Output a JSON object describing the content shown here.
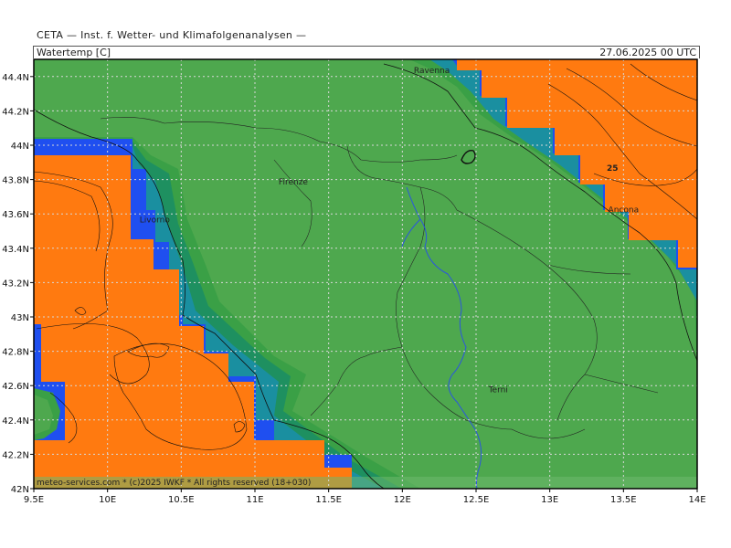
{
  "header": {
    "title": "CETA — Inst. f. Wetter- und Klimafolgenanalysen —",
    "parameter": "Watertemp [C]",
    "timestamp": "27.06.2025 00 UTC"
  },
  "map": {
    "lon_range": [
      9.5,
      14.0
    ],
    "lat_range": [
      42.0,
      44.5
    ],
    "x_ticks": [
      "9.5E",
      "10E",
      "10.5E",
      "11E",
      "11.5E",
      "12E",
      "12.5E",
      "13E",
      "13.5E",
      "14E"
    ],
    "y_ticks": [
      "44.4N",
      "44.2N",
      "44N",
      "43.8N",
      "43.6N",
      "43.4N",
      "43.2N",
      "43N",
      "42.8N",
      "42.6N",
      "42.4N",
      "42.2N",
      "42N"
    ],
    "cities": [
      {
        "name": "Ravenna",
        "lon": 12.2,
        "lat": 44.42
      },
      {
        "name": "Firenze",
        "lon": 11.26,
        "lat": 43.77
      },
      {
        "name": "Livorno",
        "lon": 10.32,
        "lat": 43.55
      },
      {
        "name": "Ancona",
        "lon": 13.5,
        "lat": 43.61
      },
      {
        "name": "Terni",
        "lon": 12.65,
        "lat": 42.56
      }
    ],
    "contour_label": "25",
    "colors": {
      "land": "#4ea84e",
      "coast_dark": "#1a8a6a",
      "coast_mid": "#2a9a4a",
      "blue": "#1f4ff0",
      "orange": "#ff7a10",
      "teal": "#1a9a8a"
    }
  },
  "footer": {
    "copyright": "meteo-services.com * (c)2025 IWKF * All rights reserved (18+030)"
  }
}
